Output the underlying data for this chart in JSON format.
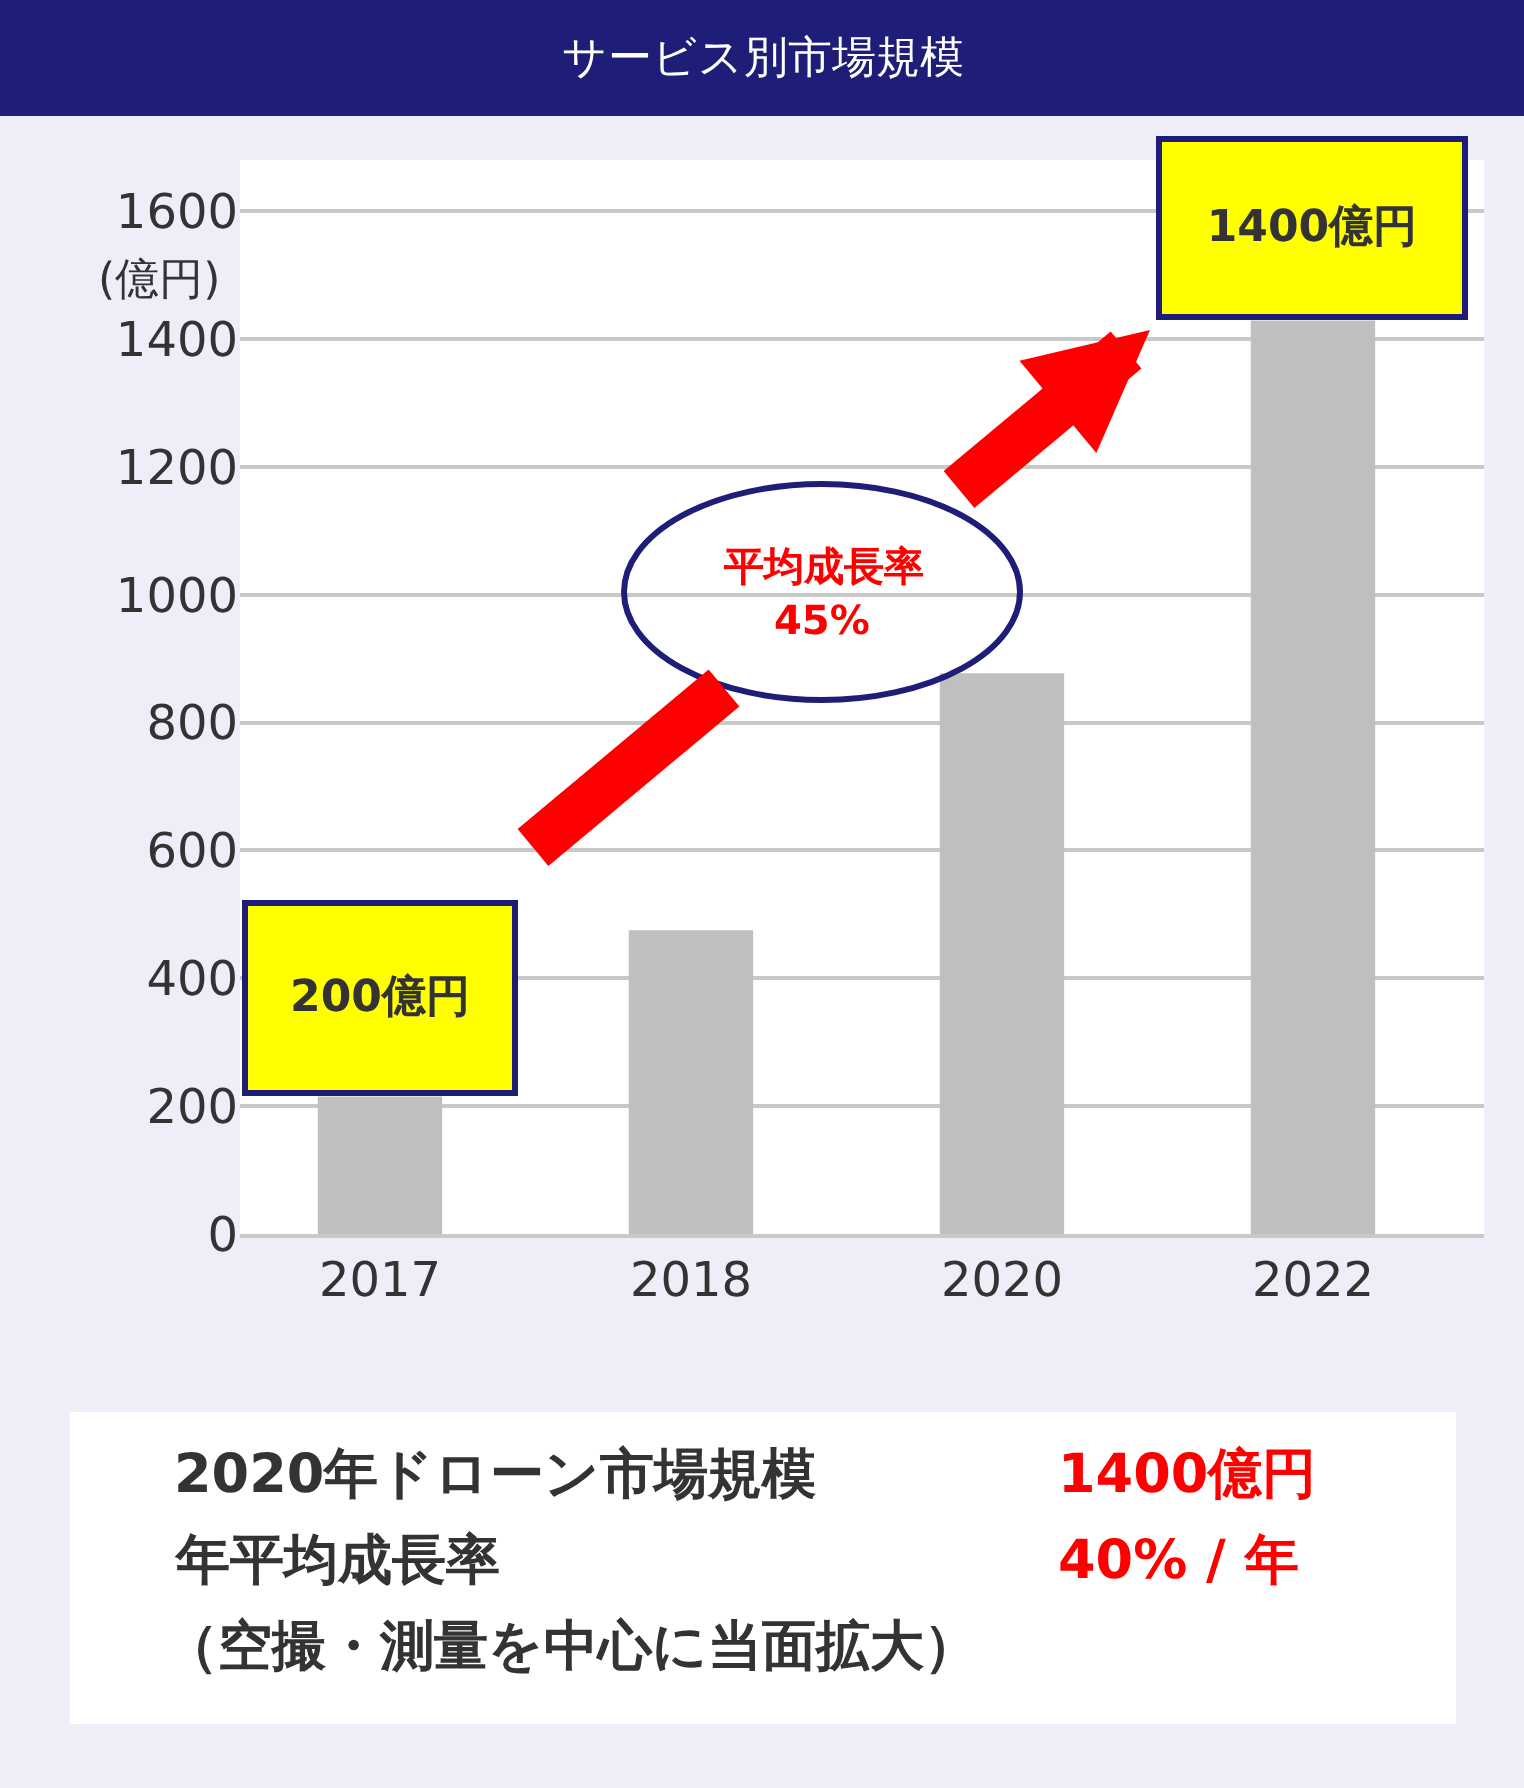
{
  "chart_data": {
    "type": "bar",
    "title": "サービス別市場規模",
    "ylabel": "(億円)",
    "categories": [
      "2017",
      "2018",
      "2020",
      "2022"
    ],
    "values": [
      215,
      475,
      877,
      1429
    ],
    "color": "#bfbfbf",
    "ylim": [
      0,
      1680
    ],
    "yticks": [
      0,
      200,
      400,
      600,
      800,
      1000,
      1200,
      1400,
      1600
    ],
    "grid": "y",
    "annotations": [
      {
        "text": "200億円",
        "x": "2017",
        "y": 215
      },
      {
        "text": "1400億円",
        "x": "2022",
        "y": 1429
      },
      "平均成長率",
      "45%",
      "2020年ドローン市場規模",
      "1400億円",
      "年平均成長率",
      "40% / 年",
      "（空撮・測量を中心に当面拡大）"
    ]
  }
}
